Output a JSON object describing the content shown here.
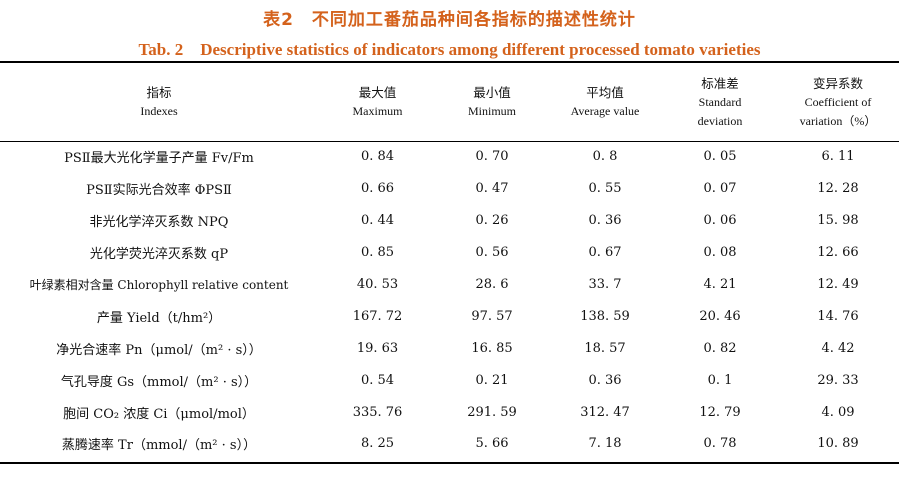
{
  "title_cn": "表2　不同加工番茄品种间各指标的描述性统计",
  "title_en": "Tab. 2　Descriptive statistics of indicators among different processed tomato varieties",
  "headers": [
    {
      "cn": "指标",
      "en": "Indexes"
    },
    {
      "cn": "最大值",
      "en": "Maximum"
    },
    {
      "cn": "最小值",
      "en": "Minimum"
    },
    {
      "cn": "平均值",
      "en": "Average value"
    },
    {
      "cn": "标准差",
      "en": "Standard deviation"
    },
    {
      "cn": "变异系数",
      "en": "Coefficient of variation（%）"
    }
  ],
  "rows": [
    {
      "name": "PSⅡ最大光化学量子产量 Fv/Fm",
      "max": "0. 84",
      "min": "0. 70",
      "avg": "0. 8",
      "sd": "0. 05",
      "cv": "6. 11"
    },
    {
      "name": "PSⅡ实际光合效率 ΦPSⅡ",
      "max": "0. 66",
      "min": "0. 47",
      "avg": "0. 55",
      "sd": "0. 07",
      "cv": "12. 28"
    },
    {
      "name": "非光化学淬灭系数 NPQ",
      "max": "0. 44",
      "min": "0. 26",
      "avg": "0. 36",
      "sd": "0. 06",
      "cv": "15. 98"
    },
    {
      "name": "光化学荧光淬灭系数 qP",
      "max": "0. 85",
      "min": "0. 56",
      "avg": "0. 67",
      "sd": "0. 08",
      "cv": "12. 66"
    },
    {
      "name": "叶绿素相对含量 Chlorophyll relative content",
      "max": "40. 53",
      "min": "28. 6",
      "avg": "33. 7",
      "sd": "4. 21",
      "cv": "12. 49"
    },
    {
      "name": "产量 Yield（t/hm²）",
      "max": "167. 72",
      "min": "97. 57",
      "avg": "138. 59",
      "sd": "20. 46",
      "cv": "14. 76"
    },
    {
      "name": "净光合速率 Pn（μmol/（m² · s））",
      "max": "19. 63",
      "min": "16. 85",
      "avg": "18. 57",
      "sd": "0. 82",
      "cv": "4. 42"
    },
    {
      "name": "气孔导度 Gs（mmol/（m² · s））",
      "max": "0. 54",
      "min": "0. 21",
      "avg": "0. 36",
      "sd": "0. 1",
      "cv": "29. 33"
    },
    {
      "name": "胞间 CO₂ 浓度 Ci（μmol/mol）",
      "max": "335. 76",
      "min": "291. 59",
      "avg": "312. 47",
      "sd": "12. 79",
      "cv": "4. 09"
    },
    {
      "name": "蒸腾速率 Tr（mmol/（m² · s））",
      "max": "8. 25",
      "min": "5. 66",
      "avg": "7. 18",
      "sd": "0. 78",
      "cv": "10. 89"
    }
  ]
}
